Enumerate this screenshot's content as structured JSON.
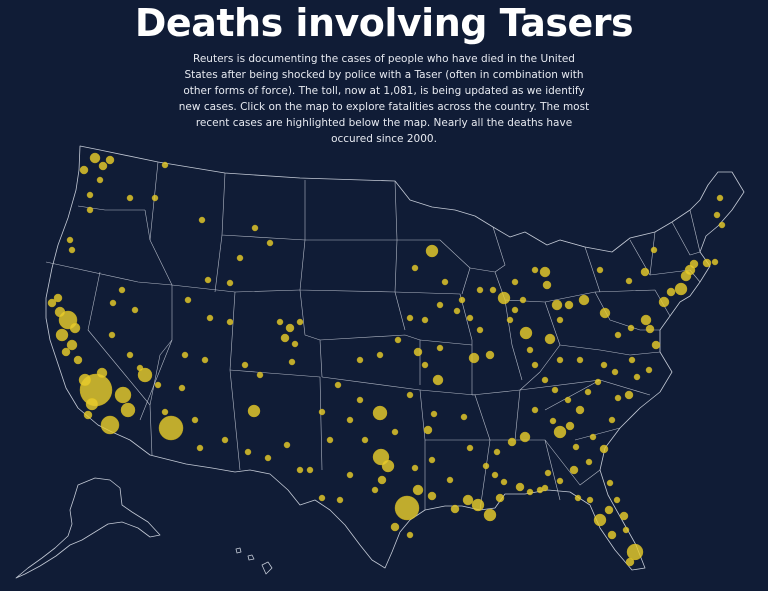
{
  "header": {
    "title": "Deaths involving Tasers",
    "intro": "Reuters is documenting the cases of people who have died in the United States after being shocked by police with a Taser (often in combination with other forms of force). The toll, now at 1,081, is being updated as we identify new cases. Click on the map to explore fatalities across the country. The most recent cases are highlighted below the map. Nearly all the deaths have occured since 2000."
  },
  "map": {
    "land_color": "#101c36",
    "border_color": "#c4cad6",
    "marker_color": "#e8cc2c",
    "background_color": "#101c36"
  }
}
